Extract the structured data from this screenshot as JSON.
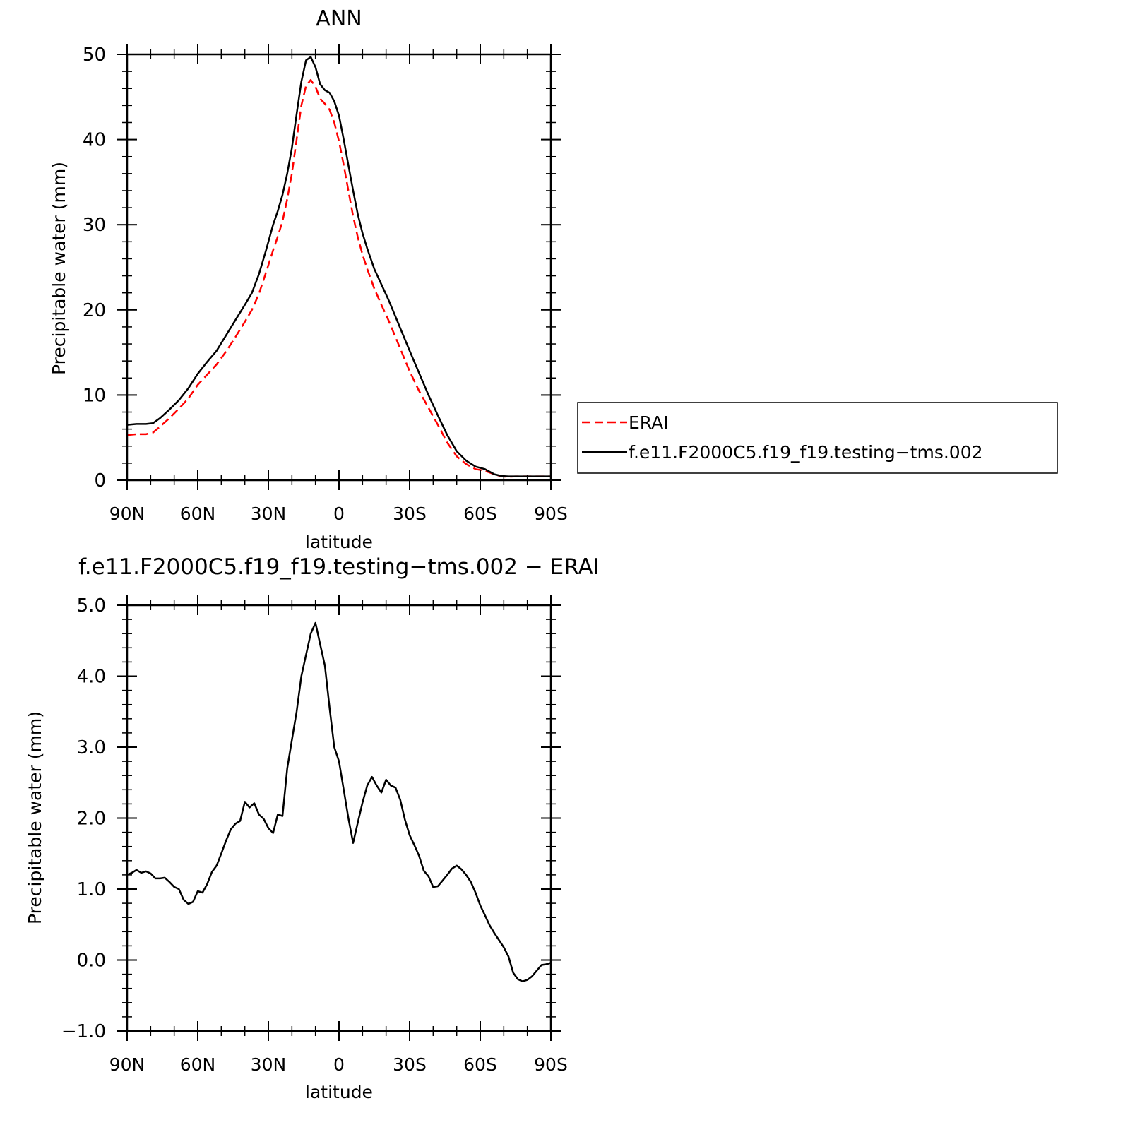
{
  "chart_data": [
    {
      "type": "line",
      "title": "ANN",
      "xlabel": "latitude",
      "ylabel": "Precipitable water (mm)",
      "xlim": [
        90,
        -90
      ],
      "ylim": [
        0,
        50
      ],
      "x_ticks": [
        90,
        60,
        30,
        0,
        -30,
        -60,
        -90
      ],
      "x_tick_labels": [
        "90N",
        "60N",
        "30N",
        "0",
        "30S",
        "60S",
        "90S"
      ],
      "y_ticks": [
        0,
        10,
        20,
        30,
        40,
        50
      ],
      "y_tick_labels": [
        "0",
        "10",
        "20",
        "30",
        "40",
        "50"
      ],
      "x": [
        90,
        86,
        82,
        79,
        76,
        72,
        68,
        64,
        60,
        56,
        52,
        48,
        44,
        40,
        37,
        34,
        31,
        28,
        26,
        24,
        22,
        20,
        18,
        16,
        14,
        12,
        10,
        8,
        6,
        4,
        2,
        0,
        -2,
        -4,
        -6,
        -8,
        -10,
        -12,
        -15,
        -18,
        -21,
        -24,
        -27,
        -30,
        -34,
        -38,
        -42,
        -46,
        -50,
        -54,
        -58,
        -62,
        -66,
        -69,
        -72,
        -75,
        -78,
        -81,
        -84,
        -87,
        -90
      ],
      "series": [
        {
          "name": "ERAI",
          "color": "#ff0000",
          "dash": "dashed",
          "values": [
            5.3,
            5.4,
            5.4,
            5.6,
            6.3,
            7.3,
            8.4,
            9.6,
            11.2,
            12.4,
            13.6,
            15.1,
            16.8,
            18.6,
            20.0,
            21.9,
            24.4,
            27.0,
            28.6,
            30.4,
            33.0,
            36.0,
            40.0,
            44.0,
            46.3,
            47.0,
            46.2,
            44.8,
            44.2,
            43.5,
            42.0,
            39.8,
            37.0,
            34.0,
            31.0,
            28.5,
            26.5,
            24.8,
            22.5,
            20.6,
            18.8,
            16.8,
            14.8,
            12.8,
            10.5,
            8.5,
            6.5,
            4.4,
            2.8,
            1.9,
            1.3,
            1.1,
            0.7,
            0.45,
            0.4,
            0.45,
            0.45,
            0.45,
            0.45,
            0.45,
            0.45
          ]
        },
        {
          "name": "f.e11.F2000C5.f19_f19.testing−tms.002",
          "color": "#000000",
          "dash": "solid",
          "values": [
            6.5,
            6.6,
            6.6,
            6.7,
            7.3,
            8.3,
            9.4,
            10.8,
            12.5,
            13.9,
            15.2,
            17.0,
            18.8,
            20.6,
            22.0,
            24.2,
            27.0,
            30.0,
            31.6,
            33.5,
            36.0,
            39.0,
            43.0,
            46.8,
            49.3,
            49.7,
            48.5,
            46.5,
            45.8,
            45.5,
            44.5,
            42.8,
            40.0,
            37.0,
            34.0,
            31.2,
            29.0,
            27.2,
            24.8,
            23.0,
            21.2,
            19.2,
            17.2,
            15.2,
            12.6,
            10.0,
            7.6,
            5.3,
            3.4,
            2.3,
            1.6,
            1.3,
            0.7,
            0.5,
            0.45,
            0.45,
            0.45,
            0.45,
            0.45,
            0.45,
            0.45
          ]
        }
      ],
      "legend": {
        "position": "right",
        "entries": [
          "ERAI",
          "f.e11.F2000C5.f19_f19.testing−tms.002"
        ]
      }
    },
    {
      "type": "line",
      "title": "f.e11.F2000C5.f19_f19.testing−tms.002 − ERAI",
      "xlabel": "latitude",
      "ylabel": "Precipitable water (mm)",
      "xlim": [
        90,
        -90
      ],
      "ylim": [
        -1.0,
        5.0
      ],
      "x_ticks": [
        90,
        60,
        30,
        0,
        -30,
        -60,
        -90
      ],
      "x_tick_labels": [
        "90N",
        "60N",
        "30N",
        "0",
        "30S",
        "60S",
        "90S"
      ],
      "y_ticks": [
        -1.0,
        0.0,
        1.0,
        2.0,
        3.0,
        4.0,
        5.0
      ],
      "y_tick_labels": [
        "−1.0",
        "0.0",
        "1.0",
        "2.0",
        "3.0",
        "4.0",
        "5.0"
      ],
      "x": [
        90,
        88,
        86,
        84,
        82,
        80,
        78,
        76,
        74,
        72,
        70,
        68,
        66,
        64,
        62,
        60,
        58,
        56,
        54,
        52,
        50,
        48,
        46,
        44,
        42,
        40,
        38,
        36,
        34,
        32,
        30,
        28,
        26,
        24,
        22,
        20,
        18,
        16,
        14,
        12,
        10,
        8,
        6,
        4,
        2,
        0,
        -2,
        -4,
        -6,
        -8,
        -10,
        -12,
        -14,
        -16,
        -18,
        -20,
        -22,
        -24,
        -26,
        -28,
        -30,
        -32,
        -34,
        -36,
        -38,
        -40,
        -42,
        -44,
        -46,
        -48,
        -50,
        -52,
        -54,
        -56,
        -58,
        -60,
        -62,
        -64,
        -66,
        -68,
        -70,
        -72,
        -74,
        -76,
        -78,
        -80,
        -82,
        -84,
        -86,
        -88,
        -90
      ],
      "series": [
        {
          "name": "f.e11.F2000C5.f19_f19.testing−tms.002 − ERAI",
          "color": "#000000",
          "dash": "solid",
          "values": [
            1.2,
            1.23,
            1.27,
            1.23,
            1.25,
            1.22,
            1.15,
            1.15,
            1.16,
            1.1,
            1.03,
            1.0,
            0.85,
            0.79,
            0.82,
            0.97,
            0.95,
            1.07,
            1.24,
            1.33,
            1.5,
            1.68,
            1.84,
            1.92,
            1.96,
            2.23,
            2.15,
            2.21,
            2.05,
            1.99,
            1.86,
            1.79,
            2.05,
            2.03,
            2.7,
            3.1,
            3.5,
            4.0,
            4.3,
            4.6,
            4.75,
            4.45,
            4.15,
            3.55,
            3.0,
            2.8,
            2.4,
            2.0,
            1.65,
            1.94,
            2.22,
            2.46,
            2.58,
            2.46,
            2.36,
            2.54,
            2.46,
            2.43,
            2.26,
            1.98,
            1.76,
            1.62,
            1.47,
            1.26,
            1.18,
            1.03,
            1.04,
            1.12,
            1.2,
            1.29,
            1.33,
            1.28,
            1.2,
            1.1,
            0.95,
            0.77,
            0.63,
            0.49,
            0.38,
            0.28,
            0.18,
            0.05,
            -0.18,
            -0.27,
            -0.3,
            -0.28,
            -0.23,
            -0.15,
            -0.07,
            -0.06,
            -0.04
          ]
        }
      ]
    }
  ]
}
